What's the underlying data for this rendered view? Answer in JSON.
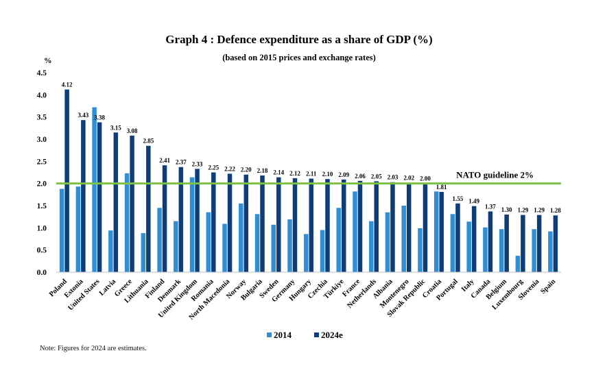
{
  "chart_data": {
    "type": "bar",
    "title": "Graph 4 : Defence expenditure as a share of GDP (%)",
    "subtitle": "(based on 2015 prices and exchange rates)",
    "ylabel": "%",
    "ylim": [
      0,
      4.5
    ],
    "yticks": [
      "0.0",
      "0.5",
      "1.0",
      "1.5",
      "2.0",
      "2.5",
      "3.0",
      "3.5",
      "4.0",
      "4.5"
    ],
    "grid": false,
    "legend_position": "bottom",
    "categories": [
      "Poland",
      "Estonia",
      "United States",
      "Latvia",
      "Greece",
      "Lithuania",
      "Finland",
      "Denmark",
      "United Kingdom",
      "Romania",
      "North Macedonia",
      "Norway",
      "Bulgaria",
      "Sweden",
      "Germany",
      "Hungary",
      "Czechia",
      "Türkiye",
      "France",
      "Netherlands",
      "Albania",
      "Montenegro",
      "Slovak Republic",
      "Croatia",
      "Portugal",
      "Italy",
      "Canada",
      "Belgium",
      "Luxembourg",
      "Slovenia",
      "Spain"
    ],
    "series": [
      {
        "name": "2014",
        "color": "#2e8fd6",
        "values": [
          1.88,
          1.93,
          3.72,
          0.94,
          2.23,
          0.88,
          1.45,
          1.15,
          2.14,
          1.35,
          1.09,
          1.55,
          1.31,
          1.07,
          1.19,
          0.86,
          0.95,
          1.45,
          1.82,
          1.15,
          1.35,
          1.5,
          0.99,
          1.82,
          1.31,
          1.14,
          1.01,
          0.97,
          0.37,
          0.97,
          0.92
        ]
      },
      {
        "name": "2024e",
        "color": "#0e3d7a",
        "values": [
          4.12,
          3.43,
          3.38,
          3.15,
          3.08,
          2.85,
          2.41,
          2.37,
          2.33,
          2.25,
          2.22,
          2.2,
          2.18,
          2.14,
          2.12,
          2.11,
          2.1,
          2.09,
          2.06,
          2.05,
          2.03,
          2.02,
          2.0,
          1.81,
          1.55,
          1.49,
          1.37,
          1.3,
          1.29,
          1.29,
          1.28
        ],
        "labels": [
          "4.12",
          "3.43",
          "3.38",
          "3.15",
          "3.08",
          "2.85",
          "2.41",
          "2.37",
          "2.33",
          "2.25",
          "2.22",
          "2.20",
          "2.18",
          "2.14",
          "2.12",
          "2.11",
          "2.10",
          "2.09",
          "2.06",
          "2.05",
          "2.03",
          "2.02",
          "2.00",
          "1.81",
          "1.55",
          "1.49",
          "1.37",
          "1.30",
          "1.29",
          "1.29",
          "1.28"
        ]
      }
    ],
    "reference_line": {
      "value": 2.0,
      "label": "NATO guideline 2%",
      "color": "#7dc242"
    }
  },
  "note": "Note: Figures for 2024 are estimates."
}
